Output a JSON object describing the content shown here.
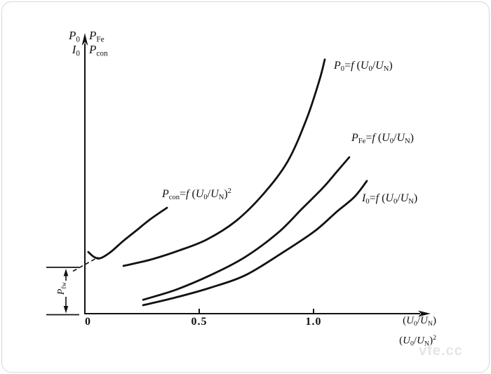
{
  "watermark": "vfe.cc",
  "chart_data": {
    "type": "line",
    "grid": false,
    "legend": "labels-on-curves",
    "x_axis": {
      "origin_label": "0",
      "ticks": [
        {
          "value": 0.5,
          "label": "0.5"
        },
        {
          "value": 1.0,
          "label": "1.0"
        }
      ],
      "range": [
        0,
        1.5
      ],
      "label_line1": "(U0/UN)",
      "label_line2": "(U0/UN)²"
    },
    "y_axis": {
      "quantities": [
        "P0",
        "I0",
        "PFe",
        "Pcon"
      ],
      "range": [
        0,
        100
      ],
      "unit": "relative"
    },
    "series": [
      {
        "name": "P0=f(U0/UN)",
        "points": [
          [
            0.169,
            17.5
          ],
          [
            0.288,
            19.8
          ],
          [
            0.411,
            23.1
          ],
          [
            0.534,
            27.2
          ],
          [
            0.66,
            33.9
          ],
          [
            0.779,
            43.7
          ],
          [
            0.887,
            55.8
          ],
          [
            0.969,
            71.2
          ],
          [
            1.025,
            85.3
          ],
          [
            1.049,
            93.1
          ]
        ]
      },
      {
        "name": "PFe=f(U0/UN)",
        "points": [
          [
            0.255,
            5.1
          ],
          [
            0.396,
            8.7
          ],
          [
            0.549,
            14.1
          ],
          [
            0.702,
            20.8
          ],
          [
            0.847,
            29.8
          ],
          [
            0.948,
            38.3
          ],
          [
            1.04,
            46.0
          ],
          [
            1.101,
            51.9
          ],
          [
            1.156,
            57.3
          ]
        ]
      },
      {
        "name": "I0=f(U0/UN)",
        "points": [
          [
            0.255,
            3.1
          ],
          [
            0.396,
            5.9
          ],
          [
            0.549,
            9.5
          ],
          [
            0.702,
            14.1
          ],
          [
            0.856,
            21.9
          ],
          [
            1.003,
            30.1
          ],
          [
            1.101,
            37.3
          ],
          [
            1.178,
            42.7
          ],
          [
            1.233,
            48.6
          ]
        ]
      },
      {
        "name": "Pcon=f(U0/UN)²",
        "points": [
          [
            0.015,
            22.6
          ],
          [
            0.04,
            20.8
          ],
          [
            0.067,
            20.3
          ],
          [
            0.113,
            22.6
          ],
          [
            0.166,
            26.5
          ],
          [
            0.227,
            30.6
          ],
          [
            0.288,
            34.7
          ],
          [
            0.359,
            38.8
          ]
        ]
      }
    ],
    "annotations": [
      {
        "name": "Pfw",
        "type": "y-level",
        "y": 17.0
      }
    ]
  },
  "labels": {
    "curve_p0": [
      {
        "t": "P",
        "it": 1
      },
      {
        "t": "0",
        "v": "sub"
      },
      {
        "t": "="
      },
      {
        "t": "f",
        "it": 1
      },
      {
        "t": " ("
      },
      {
        "t": "U",
        "it": 1
      },
      {
        "t": "0",
        "v": "sub"
      },
      {
        "t": "/"
      },
      {
        "t": "U",
        "it": 1
      },
      {
        "t": "N",
        "v": "sub"
      },
      {
        "t": ")"
      }
    ],
    "curve_pfe": [
      {
        "t": "P",
        "it": 1
      },
      {
        "t": "Fe",
        "v": "sub"
      },
      {
        "t": "="
      },
      {
        "t": "f",
        "it": 1
      },
      {
        "t": " ("
      },
      {
        "t": "U",
        "it": 1
      },
      {
        "t": "0",
        "v": "sub"
      },
      {
        "t": "/"
      },
      {
        "t": "U",
        "it": 1
      },
      {
        "t": "N",
        "v": "sub"
      },
      {
        "t": ")"
      }
    ],
    "curve_i0": [
      {
        "t": "I",
        "it": 1
      },
      {
        "t": "0",
        "v": "sub"
      },
      {
        "t": "="
      },
      {
        "t": "f",
        "it": 1
      },
      {
        "t": " ("
      },
      {
        "t": "U",
        "it": 1
      },
      {
        "t": "0",
        "v": "sub"
      },
      {
        "t": "/"
      },
      {
        "t": "U",
        "it": 1
      },
      {
        "t": "N",
        "v": "sub"
      },
      {
        "t": ")"
      }
    ],
    "curve_pcon": [
      {
        "t": "P",
        "it": 1
      },
      {
        "t": "con",
        "v": "sub"
      },
      {
        "t": "="
      },
      {
        "t": "f",
        "it": 1
      },
      {
        "t": " ("
      },
      {
        "t": "U",
        "it": 1
      },
      {
        "t": "0",
        "v": "sub"
      },
      {
        "t": "/"
      },
      {
        "t": "U",
        "it": 1
      },
      {
        "t": "N",
        "v": "sub"
      },
      {
        "t": ")"
      },
      {
        "t": "2",
        "v": "sup"
      }
    ],
    "axis_p0": [
      {
        "t": "P",
        "it": 1
      },
      {
        "t": "0",
        "v": "sub"
      }
    ],
    "axis_i0": [
      {
        "t": "I",
        "it": 1
      },
      {
        "t": "0",
        "v": "sub"
      }
    ],
    "axis_pfe": [
      {
        "t": "P",
        "it": 1
      },
      {
        "t": "Fe",
        "v": "sub"
      }
    ],
    "axis_pcon": [
      {
        "t": "P",
        "it": 1
      },
      {
        "t": "con",
        "v": "sub"
      }
    ],
    "x_end_1": [
      {
        "t": "("
      },
      {
        "t": "U",
        "it": 1
      },
      {
        "t": "0",
        "v": "sub"
      },
      {
        "t": "/"
      },
      {
        "t": "U",
        "it": 1
      },
      {
        "t": "N",
        "v": "sub"
      },
      {
        "t": ")"
      }
    ],
    "x_end_2": [
      {
        "t": "("
      },
      {
        "t": "U",
        "it": 1
      },
      {
        "t": "0",
        "v": "sub"
      },
      {
        "t": "/"
      },
      {
        "t": "U",
        "it": 1
      },
      {
        "t": "N",
        "v": "sub"
      },
      {
        "t": ")"
      },
      {
        "t": "2",
        "v": "sup"
      }
    ],
    "pfw": [
      {
        "t": "P",
        "it": 1
      },
      {
        "t": "fw",
        "v": "sub"
      }
    ]
  }
}
